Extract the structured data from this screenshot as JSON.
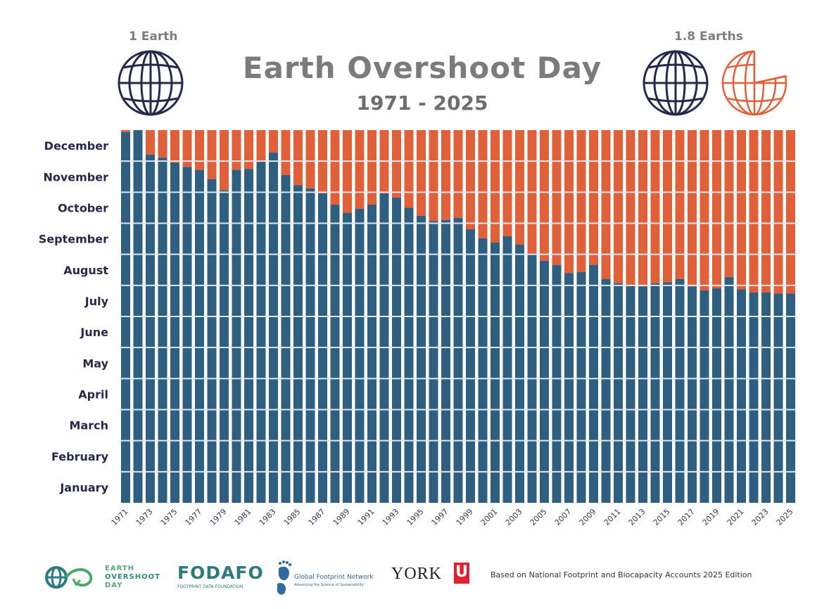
{
  "header": {
    "title": "Earth Overshoot Day",
    "subtitle": "1971 - 2025",
    "left_label": "1 Earth",
    "right_label": "1.8 Earths"
  },
  "colors": {
    "budget": "#2e5f80",
    "overshoot": "#e0603a",
    "globe": "#262a4a",
    "title": "#7b7b7b"
  },
  "chart_data": {
    "type": "bar",
    "stacked": true,
    "title": "Earth Overshoot Day",
    "subtitle": "1971 - 2025",
    "x": [
      1971,
      1972,
      1973,
      1974,
      1975,
      1976,
      1977,
      1978,
      1979,
      1980,
      1981,
      1982,
      1983,
      1984,
      1985,
      1986,
      1987,
      1988,
      1989,
      1990,
      1991,
      1992,
      1993,
      1994,
      1995,
      1996,
      1997,
      1998,
      1999,
      2000,
      2001,
      2002,
      2003,
      2004,
      2005,
      2006,
      2007,
      2008,
      2009,
      2010,
      2011,
      2012,
      2013,
      2014,
      2015,
      2016,
      2017,
      2018,
      2019,
      2020,
      2021,
      2022,
      2023,
      2024,
      2025
    ],
    "overshoot_day": [
      "12-29",
      "12-31",
      "12-07",
      "12-04",
      "11-29",
      "11-25",
      "11-22",
      "11-13",
      "11-02",
      "11-22",
      "11-23",
      "12-01",
      "12-09",
      "11-17",
      "11-07",
      "11-04",
      "10-30",
      "10-19",
      "10-11",
      "10-15",
      "10-19",
      "10-30",
      "10-26",
      "10-16",
      "10-08",
      "10-03",
      "10-04",
      "10-06",
      "09-25",
      "09-16",
      "09-12",
      "09-18",
      "09-10",
      "09-01",
      "08-25",
      "08-21",
      "08-13",
      "08-14",
      "08-21",
      "08-07",
      "08-03",
      "08-01",
      "07-31",
      "08-03",
      "08-04",
      "08-07",
      "07-31",
      "07-27",
      "07-29",
      "08-09",
      "07-28",
      "07-25",
      "07-25",
      "07-24",
      "07-24"
    ],
    "x_tick_labels": [
      "1971",
      "1973",
      "1975",
      "1977",
      "1979",
      "1981",
      "1983",
      "1985",
      "1987",
      "1989",
      "1991",
      "1993",
      "1995",
      "1997",
      "1999",
      "2001",
      "2003",
      "2005",
      "2007",
      "2009",
      "2011",
      "2013",
      "2015",
      "2017",
      "2019",
      "2021",
      "2023",
      "2025"
    ],
    "y_tick_labels": [
      "January",
      "February",
      "March",
      "April",
      "May",
      "June",
      "July",
      "August",
      "September",
      "October",
      "November",
      "December"
    ],
    "ylim": [
      "01-01",
      "12-31"
    ],
    "grid": true
  },
  "footer": {
    "eod_logo": [
      "EARTH",
      "OVERSHOOT",
      "DAY"
    ],
    "fodafo_logo": "FODAFO",
    "fodafo_sub": "FOOTPRINT DATA FOUNDATION",
    "gfn_logo": "Global Footprint Network",
    "gfn_sub": "Advancing the Science of Sustainability",
    "york_logo": "YORK",
    "source": "Based on National Footprint and Biocapacity Accounts 2025 Edition"
  }
}
